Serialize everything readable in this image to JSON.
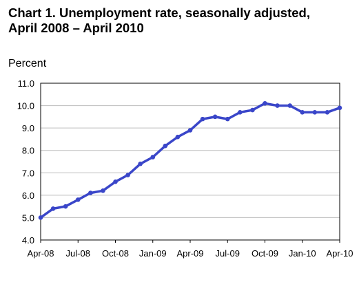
{
  "chart_data": {
    "type": "line",
    "title_line1": "Chart 1. Unemployment rate, seasonally adjusted,",
    "title_line2": "April 2008 – April 2010",
    "ylabel": "Percent",
    "xlabel": "",
    "ylim": [
      4.0,
      11.0
    ],
    "yticks": [
      "4.0",
      "5.0",
      "6.0",
      "7.0",
      "8.0",
      "9.0",
      "10.0",
      "11.0"
    ],
    "xtick_labels": [
      "Apr-08",
      "Jul-08",
      "Oct-08",
      "Jan-09",
      "Apr-09",
      "Jul-09",
      "Oct-09",
      "Jan-10",
      "Apr-10"
    ],
    "grid": "horizontal",
    "line_color": "#3a46c9",
    "series": [
      {
        "x": [
          "Apr-08",
          "May-08",
          "Jun-08",
          "Jul-08",
          "Aug-08",
          "Sep-08",
          "Oct-08",
          "Nov-08",
          "Dec-08",
          "Jan-09",
          "Feb-09",
          "Mar-09",
          "Apr-09",
          "May-09",
          "Jun-09",
          "Jul-09",
          "Aug-09",
          "Sep-09",
          "Oct-09",
          "Nov-09",
          "Dec-09",
          "Jan-10",
          "Feb-10",
          "Mar-10",
          "Apr-10"
        ],
        "values": [
          5.0,
          5.4,
          5.5,
          5.8,
          6.1,
          6.2,
          6.6,
          6.9,
          7.4,
          7.7,
          8.2,
          8.6,
          8.9,
          9.4,
          9.5,
          9.4,
          9.7,
          9.8,
          10.1,
          10.0,
          10.0,
          9.7,
          9.7,
          9.7,
          9.9
        ]
      }
    ]
  }
}
